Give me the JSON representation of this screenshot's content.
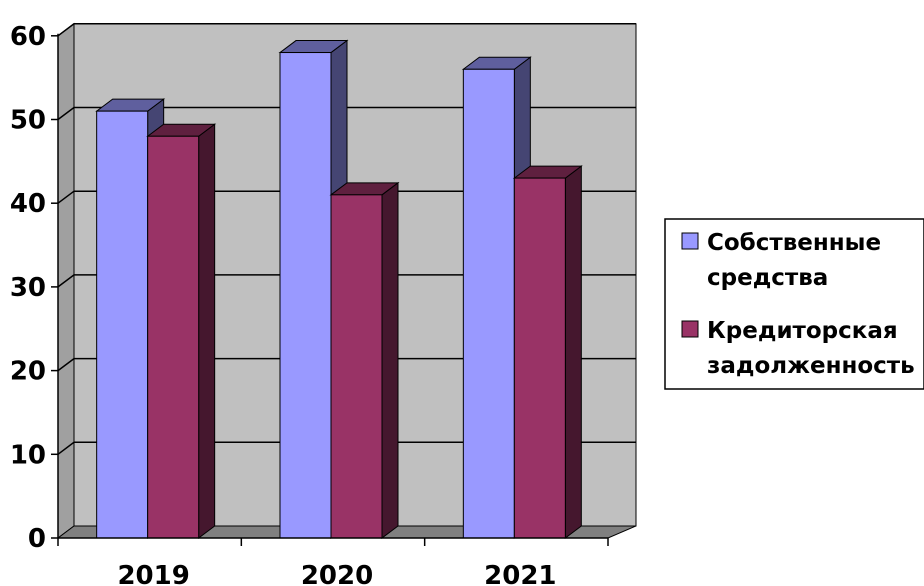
{
  "chart_data": {
    "type": "bar",
    "categories": [
      "2019",
      "2020",
      "2021"
    ],
    "series": [
      {
        "name": "Собственные средства",
        "values": [
          51,
          58,
          56
        ],
        "color": "#9999ff"
      },
      {
        "name": "Кредиторская задолженность",
        "values": [
          48,
          41,
          43
        ],
        "color": "#993366"
      }
    ],
    "yticks": [
      "0",
      "10",
      "20",
      "30",
      "40",
      "50",
      "60"
    ],
    "ylim": [
      0,
      60
    ],
    "grid": true,
    "legend": {
      "placement": "right",
      "lines": [
        [
          "Собственные",
          "средства"
        ],
        [
          "Кредиторская",
          "задолженность"
        ]
      ]
    },
    "colors": {
      "wall": "#c0c0c0",
      "floor": "#808080",
      "grid": "#000000"
    }
  }
}
